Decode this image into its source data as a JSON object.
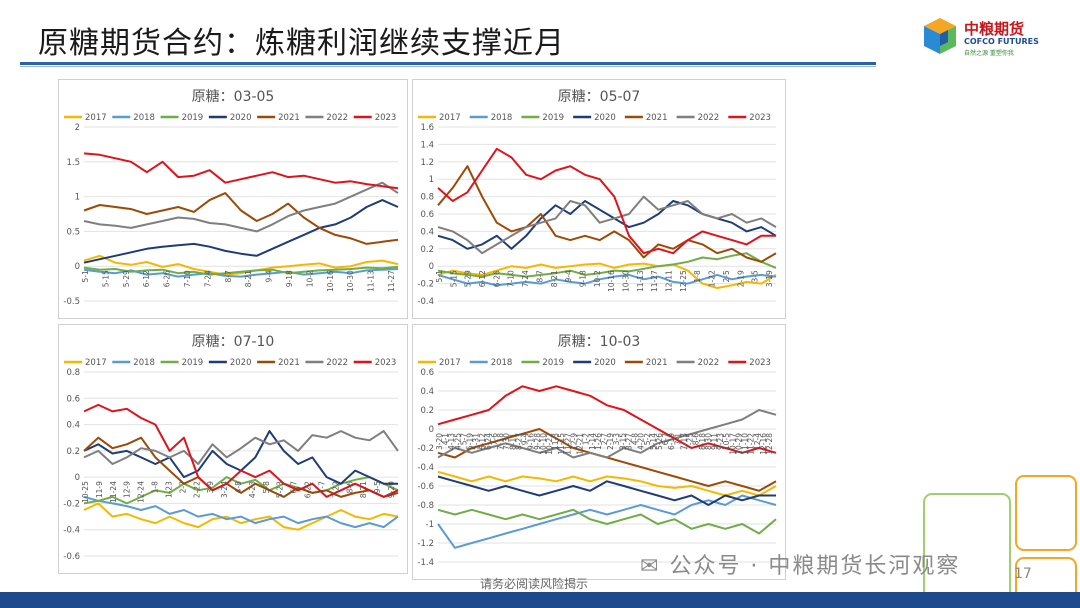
{
  "page": {
    "title": "原糖期货合约：炼糖利润继续支撑近月",
    "logo_name": "中粮期货",
    "logo_en": "COFCO FUTURES",
    "logo_slogan": "自然之源 重塑你我",
    "footer": "请务必阅读风险揭示",
    "page_number": "17",
    "watermark": "公众号 · 中粮期货长河观察"
  },
  "colors": {
    "2017": "#f5b800",
    "2018": "#5b9bd5",
    "2019": "#70ad47",
    "2020": "#1f3c78",
    "2021": "#9c4a06",
    "2022": "#7f7f7f",
    "2023": "#e0131a",
    "accent": "#2a63a8"
  },
  "chart_data": [
    {
      "type": "line",
      "title": "原糖：03-05",
      "legend": [
        "2017",
        "2018",
        "2019",
        "2020",
        "2021",
        "2022",
        "2023"
      ],
      "ylim": [
        -0.5,
        2
      ],
      "yticks": [
        2,
        1.5,
        1,
        0.5,
        0,
        -0.5
      ],
      "ytick_labels": [
        "2",
        "1.5",
        "1",
        "0.5",
        "0",
        "-0.5"
      ],
      "xtick_labels": [
        "5-1",
        "5-15",
        "5-29",
        "6-12",
        "6-26",
        "7-10",
        "7-24",
        "8-7",
        "8-21",
        "9-4",
        "9-18",
        "10-2",
        "10-16",
        "10-30",
        "11-13",
        "11-27"
      ],
      "series": [
        {
          "name": "2017",
          "values": [
            0.08,
            0.15,
            0.05,
            0.02,
            0.06,
            -0.01,
            0.03,
            -0.04,
            -0.08,
            -0.12,
            -0.1,
            -0.06,
            -0.02,
            0.0,
            0.02,
            0.04,
            -0.02,
            0.0,
            0.06,
            0.08,
            0.03
          ]
        },
        {
          "name": "2018",
          "values": [
            -0.05,
            -0.08,
            -0.1,
            -0.06,
            -0.12,
            -0.1,
            -0.15,
            -0.12,
            -0.1,
            -0.14,
            -0.15,
            -0.12,
            -0.1,
            -0.08,
            -0.12,
            -0.1,
            -0.08,
            -0.1,
            -0.06,
            -0.05,
            -0.04
          ]
        },
        {
          "name": "2019",
          "values": [
            -0.02,
            -0.05,
            -0.04,
            -0.08,
            -0.06,
            -0.05,
            -0.1,
            -0.08,
            -0.12,
            -0.1,
            -0.08,
            -0.06,
            -0.05,
            -0.1,
            -0.08,
            -0.06,
            -0.05,
            -0.04,
            -0.02,
            -0.03,
            -0.01
          ]
        },
        {
          "name": "2020",
          "values": [
            0.05,
            0.1,
            0.15,
            0.2,
            0.25,
            0.28,
            0.3,
            0.32,
            0.28,
            0.22,
            0.18,
            0.15,
            0.25,
            0.35,
            0.45,
            0.55,
            0.6,
            0.7,
            0.85,
            0.95,
            0.85
          ]
        },
        {
          "name": "2021",
          "values": [
            0.8,
            0.88,
            0.85,
            0.82,
            0.75,
            0.8,
            0.85,
            0.78,
            0.95,
            1.05,
            0.8,
            0.65,
            0.75,
            0.9,
            0.7,
            0.55,
            0.45,
            0.4,
            0.32,
            0.35,
            0.38
          ]
        },
        {
          "name": "2022",
          "values": [
            0.65,
            0.6,
            0.58,
            0.55,
            0.6,
            0.65,
            0.7,
            0.68,
            0.62,
            0.6,
            0.55,
            0.5,
            0.6,
            0.72,
            0.8,
            0.85,
            0.9,
            1.0,
            1.1,
            1.2,
            1.05
          ]
        },
        {
          "name": "2023",
          "values": [
            1.62,
            1.6,
            1.55,
            1.5,
            1.35,
            1.5,
            1.28,
            1.3,
            1.38,
            1.2,
            1.25,
            1.3,
            1.35,
            1.28,
            1.3,
            1.25,
            1.2,
            1.22,
            1.18,
            1.15,
            1.12
          ]
        }
      ]
    },
    {
      "type": "line",
      "title": "原糖：05-07",
      "legend": [
        "2017",
        "2018",
        "2019",
        "2020",
        "2021",
        "2022",
        "2023"
      ],
      "ylim": [
        -0.4,
        1.6
      ],
      "yticks": [
        1.6,
        1.4,
        1.2,
        1,
        0.8,
        0.6,
        0.4,
        0.2,
        0,
        -0.2,
        -0.4
      ],
      "ytick_labels": [
        "1.6",
        "1.4",
        "1.2",
        "1",
        "0.8",
        "0.6",
        "0.4",
        "0.2",
        "0",
        "-0.2",
        "-0.4"
      ],
      "xtick_labels": [
        "5-1",
        "5-15",
        "5-29",
        "6-12",
        "6-26",
        "7-10",
        "7-24",
        "8-7",
        "8-21",
        "9-4",
        "9-18",
        "10-2",
        "10-16",
        "10-30",
        "11-13",
        "11-27",
        "12-11",
        "12-25",
        "1-8",
        "1-22",
        "2-5",
        "2-19",
        "3-5",
        "3-19"
      ],
      "series": [
        {
          "name": "2017",
          "values": [
            -0.1,
            -0.05,
            -0.08,
            -0.1,
            -0.05,
            0.0,
            -0.02,
            0.02,
            -0.02,
            0.0,
            0.02,
            0.03,
            -0.02,
            0.02,
            0.03,
            0.0,
            0.02,
            -0.05,
            -0.2,
            -0.25,
            -0.22,
            -0.18,
            -0.2,
            -0.1
          ]
        },
        {
          "name": "2018",
          "values": [
            -0.1,
            -0.15,
            -0.2,
            -0.18,
            -0.22,
            -0.2,
            -0.18,
            -0.2,
            -0.15,
            -0.18,
            -0.2,
            -0.15,
            -0.12,
            -0.1,
            -0.15,
            -0.12,
            -0.18,
            -0.2,
            -0.15,
            -0.1,
            -0.15,
            -0.12,
            -0.1,
            -0.12
          ]
        },
        {
          "name": "2019",
          "values": [
            -0.05,
            -0.08,
            -0.1,
            -0.12,
            -0.08,
            -0.1,
            -0.12,
            -0.1,
            -0.08,
            -0.05,
            -0.1,
            -0.08,
            -0.05,
            -0.06,
            -0.03,
            0.0,
            0.02,
            0.05,
            0.1,
            0.08,
            0.12,
            0.15,
            0.05,
            -0.02
          ]
        },
        {
          "name": "2020",
          "values": [
            0.35,
            0.3,
            0.2,
            0.25,
            0.35,
            0.2,
            0.35,
            0.55,
            0.7,
            0.6,
            0.75,
            0.65,
            0.55,
            0.45,
            0.5,
            0.6,
            0.75,
            0.7,
            0.6,
            0.55,
            0.5,
            0.4,
            0.45,
            0.35
          ]
        },
        {
          "name": "2021",
          "values": [
            0.7,
            0.9,
            1.15,
            0.8,
            0.5,
            0.4,
            0.45,
            0.6,
            0.35,
            0.3,
            0.35,
            0.3,
            0.4,
            0.3,
            0.1,
            0.25,
            0.2,
            0.3,
            0.25,
            0.15,
            0.2,
            0.1,
            0.05,
            0.15
          ]
        },
        {
          "name": "2022",
          "values": [
            0.45,
            0.4,
            0.3,
            0.15,
            0.25,
            0.35,
            0.45,
            0.5,
            0.55,
            0.75,
            0.7,
            0.5,
            0.55,
            0.6,
            0.8,
            0.65,
            0.7,
            0.75,
            0.6,
            0.55,
            0.6,
            0.5,
            0.55,
            0.45
          ]
        },
        {
          "name": "2023",
          "values": [
            0.9,
            0.75,
            0.85,
            1.1,
            1.35,
            1.25,
            1.05,
            1.0,
            1.1,
            1.15,
            1.05,
            1.0,
            0.8,
            0.35,
            0.15,
            0.2,
            0.15,
            0.3,
            0.4,
            0.35,
            0.3,
            0.25,
            0.35,
            0.35
          ]
        }
      ]
    },
    {
      "type": "line",
      "title": "原糖：07-10",
      "legend": [
        "2017",
        "2018",
        "2019",
        "2020",
        "2021",
        "2022",
        "2023"
      ],
      "ylim": [
        -0.6,
        0.8
      ],
      "yticks": [
        0.8,
        0.6,
        0.4,
        0.2,
        0,
        -0.2,
        -0.4,
        -0.6
      ],
      "ytick_labels": [
        "0.8",
        "0.6",
        "0.4",
        "0.2",
        "0",
        "-0.2",
        "-0.4",
        "-0.6"
      ],
      "xtick_labels": [
        "10-25",
        "11-9",
        "11-24",
        "12-9",
        "12-24",
        "1-8",
        "1-23",
        "2-7",
        "2-22",
        "3-9",
        "3-24",
        "4-8",
        "4-23",
        "5-8",
        "5-23",
        "6-7",
        "6-22",
        "7-7",
        "7-22",
        "8-6",
        "8-21",
        "9-5",
        "9-20"
      ],
      "series": [
        {
          "name": "2017",
          "values": [
            -0.25,
            -0.2,
            -0.3,
            -0.28,
            -0.32,
            -0.35,
            -0.3,
            -0.35,
            -0.38,
            -0.32,
            -0.3,
            -0.35,
            -0.32,
            -0.3,
            -0.38,
            -0.4,
            -0.35,
            -0.3,
            -0.25,
            -0.3,
            -0.32,
            -0.28,
            -0.3
          ]
        },
        {
          "name": "2018",
          "values": [
            -0.15,
            -0.18,
            -0.2,
            -0.22,
            -0.25,
            -0.22,
            -0.28,
            -0.25,
            -0.3,
            -0.28,
            -0.32,
            -0.3,
            -0.35,
            -0.32,
            -0.3,
            -0.35,
            -0.32,
            -0.3,
            -0.35,
            -0.38,
            -0.35,
            -0.38,
            -0.3
          ]
        },
        {
          "name": "2019",
          "values": [
            -0.2,
            -0.18,
            -0.15,
            -0.2,
            -0.15,
            -0.1,
            -0.12,
            -0.05,
            -0.1,
            -0.08,
            0.0,
            -0.05,
            -0.02,
            -0.1,
            -0.05,
            -0.08,
            -0.12,
            -0.1,
            -0.05,
            -0.02,
            0.0,
            -0.05,
            -0.1
          ]
        },
        {
          "name": "2020",
          "values": [
            0.2,
            0.25,
            0.18,
            0.2,
            0.15,
            0.1,
            0.15,
            0.0,
            0.05,
            0.2,
            0.1,
            0.05,
            0.15,
            0.35,
            0.2,
            0.1,
            0.15,
            0.0,
            -0.05,
            0.05,
            0.0,
            -0.05,
            -0.05
          ]
        },
        {
          "name": "2021",
          "values": [
            0.2,
            0.3,
            0.22,
            0.25,
            0.3,
            0.15,
            0.05,
            -0.05,
            0.0,
            -0.1,
            -0.05,
            -0.12,
            -0.05,
            -0.1,
            -0.15,
            -0.08,
            -0.12,
            -0.1,
            -0.15,
            -0.12,
            -0.1,
            -0.15,
            -0.12
          ]
        },
        {
          "name": "2022",
          "values": [
            0.15,
            0.2,
            0.1,
            0.15,
            0.22,
            0.2,
            0.15,
            0.2,
            0.1,
            0.25,
            0.15,
            0.22,
            0.3,
            0.25,
            0.28,
            0.2,
            0.32,
            0.3,
            0.35,
            0.3,
            0.28,
            0.35,
            0.2
          ]
        },
        {
          "name": "2023",
          "values": [
            0.5,
            0.55,
            0.5,
            0.52,
            0.45,
            0.4,
            0.2,
            0.3,
            0.0,
            -0.1,
            -0.05,
            0.05,
            0.0,
            0.05,
            -0.05,
            -0.1,
            -0.05,
            -0.15,
            -0.1,
            -0.05,
            -0.1,
            -0.15,
            -0.1
          ]
        }
      ]
    },
    {
      "type": "line",
      "title": "原糖：10-03",
      "legend": [
        "2017",
        "2018",
        "2019",
        "2020",
        "2021",
        "2022",
        "2023"
      ],
      "ylim": [
        -1.4,
        0.6
      ],
      "yticks": [
        0.6,
        0.4,
        0.2,
        0,
        -0.2,
        -0.4,
        -0.6,
        -0.8,
        -1,
        -1.2,
        -1.4
      ],
      "ytick_labels": [
        "0.6",
        "0.4",
        "0.2",
        "0",
        "-0.2",
        "-0.4",
        "-0.6",
        "-0.8",
        "-1",
        "-1.2",
        "-1.4"
      ],
      "xtick_labels": [
        "3-20",
        "4-1",
        "4-13",
        "4-25",
        "5-7",
        "5-19",
        "5-31",
        "6-12",
        "6-24",
        "7-6",
        "7-18",
        "7-30",
        "8-11",
        "8-23",
        "9-4",
        "9-16",
        "9-28",
        "10-10",
        "10-22",
        "11-3",
        "11-15",
        "11-27",
        "12-9",
        "12-21",
        "1-2",
        "1-14",
        "1-26",
        "2-7",
        "2-19",
        "3-3",
        "3-15",
        "3-27",
        "4-8",
        "4-20",
        "5-2",
        "5-14",
        "5-26",
        "6-7",
        "6-19",
        "7-1",
        "7-13",
        "7-25",
        "8-6",
        "8-18",
        "8-30",
        "9-11",
        "9-23",
        "10-5",
        "10-17",
        "10-29",
        "11-10",
        "11-22",
        "12-4",
        "12-16",
        "12-28"
      ],
      "series": [
        {
          "name": "2017",
          "values": [
            -0.45,
            -0.5,
            -0.55,
            -0.5,
            -0.55,
            -0.5,
            -0.52,
            -0.55,
            -0.5,
            -0.55,
            -0.5,
            -0.52,
            -0.55,
            -0.6,
            -0.62,
            -0.6,
            -0.65,
            -0.7,
            -0.65,
            -0.7,
            -0.6
          ]
        },
        {
          "name": "2018",
          "values": [
            -1.0,
            -1.25,
            -1.2,
            -1.15,
            -1.1,
            -1.05,
            -1.0,
            -0.95,
            -0.9,
            -0.85,
            -0.9,
            -0.85,
            -0.8,
            -0.85,
            -0.9,
            -0.8,
            -0.75,
            -0.8,
            -0.7,
            -0.75,
            -0.8
          ]
        },
        {
          "name": "2019",
          "values": [
            -0.85,
            -0.9,
            -0.85,
            -0.9,
            -0.95,
            -0.9,
            -0.95,
            -0.9,
            -0.85,
            -0.95,
            -1.0,
            -0.95,
            -0.9,
            -1.0,
            -0.95,
            -1.05,
            -1.0,
            -1.05,
            -1.0,
            -1.1,
            -0.95
          ]
        },
        {
          "name": "2020",
          "values": [
            -0.5,
            -0.55,
            -0.6,
            -0.65,
            -0.6,
            -0.65,
            -0.7,
            -0.65,
            -0.6,
            -0.65,
            -0.55,
            -0.6,
            -0.65,
            -0.7,
            -0.75,
            -0.7,
            -0.8,
            -0.7,
            -0.75,
            -0.7,
            -0.7
          ]
        },
        {
          "name": "2021",
          "values": [
            -0.25,
            -0.3,
            -0.2,
            -0.15,
            -0.1,
            -0.05,
            0.0,
            -0.1,
            -0.2,
            -0.25,
            -0.3,
            -0.35,
            -0.4,
            -0.45,
            -0.5,
            -0.55,
            -0.6,
            -0.55,
            -0.6,
            -0.65,
            -0.55
          ]
        },
        {
          "name": "2022",
          "values": [
            -0.3,
            -0.2,
            -0.25,
            -0.2,
            -0.15,
            -0.2,
            -0.25,
            -0.2,
            -0.3,
            -0.25,
            -0.3,
            -0.2,
            -0.25,
            -0.15,
            -0.1,
            -0.05,
            0.0,
            0.05,
            0.1,
            0.2,
            0.15
          ]
        },
        {
          "name": "2023",
          "values": [
            0.05,
            0.1,
            0.15,
            0.2,
            0.35,
            0.45,
            0.4,
            0.45,
            0.4,
            0.35,
            0.25,
            0.2,
            0.1,
            0.0,
            -0.1,
            -0.2,
            -0.15,
            -0.2,
            -0.25,
            -0.2,
            -0.25
          ]
        }
      ]
    }
  ]
}
